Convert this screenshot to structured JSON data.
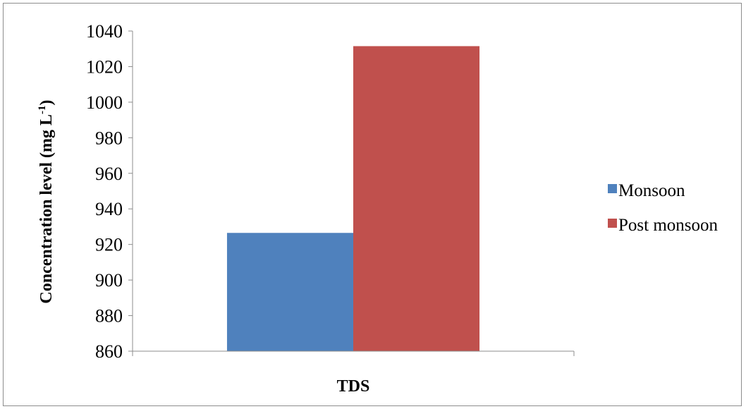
{
  "chart_data": {
    "type": "bar",
    "categories": [
      "TDS"
    ],
    "series": [
      {
        "name": "Monsoon",
        "values": [
          926.5
        ],
        "color": "#4F81BD"
      },
      {
        "name": "Post monsoon",
        "values": [
          1031.5
        ],
        "color": "#C0504D"
      }
    ],
    "ylabel_main": "Concentration level (mg L",
    "ylabel_sup": "-1",
    "ylabel_close": ")",
    "ylim": [
      860,
      1040
    ],
    "yticks": [
      "860",
      "880",
      "900",
      "920",
      "940",
      "960",
      "980",
      "1000",
      "1020",
      "1040"
    ],
    "grid": false,
    "legend_position": "right"
  }
}
